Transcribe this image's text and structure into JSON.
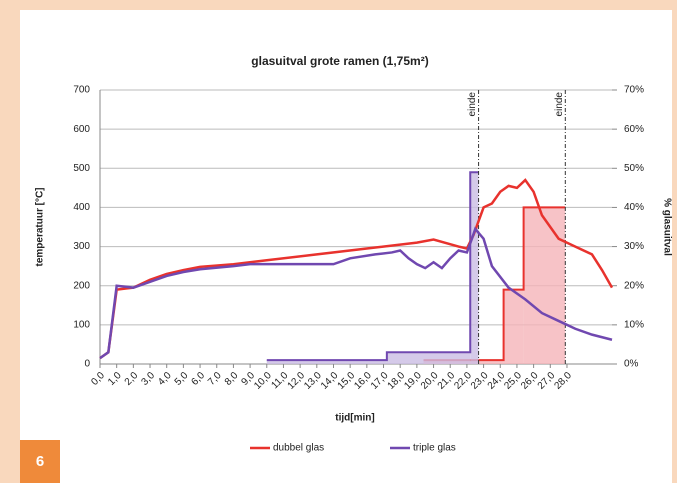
{
  "chart_data": {
    "type": "line",
    "title": "glasuitval grote ramen (1,75m²)",
    "x_label": "tijd[min]",
    "y_label": "temperatuur [°C]",
    "y2_label": "% glasuitval",
    "xlim": [
      0,
      30.7
    ],
    "xticks": [
      {
        "value": 0,
        "label": "0,0"
      },
      {
        "value": 1,
        "label": "1,0"
      },
      {
        "value": 2,
        "label": "2,0"
      },
      {
        "value": 3,
        "label": "3,0"
      },
      {
        "value": 4,
        "label": "4,0"
      },
      {
        "value": 5,
        "label": "5,0"
      },
      {
        "value": 6,
        "label": "6,0"
      },
      {
        "value": 7,
        "label": "7,0"
      },
      {
        "value": 8,
        "label": "8,0"
      },
      {
        "value": 9,
        "label": "9,0"
      },
      {
        "value": 10,
        "label": "10,0"
      },
      {
        "value": 11,
        "label": "11,0"
      },
      {
        "value": 12,
        "label": "12,0"
      },
      {
        "value": 13,
        "label": "13,0"
      },
      {
        "value": 14,
        "label": "14,0"
      },
      {
        "value": 15,
        "label": "15,0"
      },
      {
        "value": 16,
        "label": "16,0"
      },
      {
        "value": 17,
        "label": "17,0"
      },
      {
        "value": 18,
        "label": "18,0"
      },
      {
        "value": 19,
        "label": "19,0"
      },
      {
        "value": 20,
        "label": "20,0"
      },
      {
        "value": 21,
        "label": "21,0"
      },
      {
        "value": 22,
        "label": "22,0"
      },
      {
        "value": 23,
        "label": "23,0"
      },
      {
        "value": 24,
        "label": "24,0"
      },
      {
        "value": 25,
        "label": "25,0"
      },
      {
        "value": 26,
        "label": "26,0"
      },
      {
        "value": 27,
        "label": "27,0"
      },
      {
        "value": 28,
        "label": "28,0"
      }
    ],
    "ylim": [
      0,
      700
    ],
    "yticks": [
      0,
      100,
      200,
      300,
      400,
      500,
      600,
      700
    ],
    "y2lim": [
      0,
      70
    ],
    "y2ticks": [
      {
        "value": 0,
        "label": "0%"
      },
      {
        "value": 10,
        "label": "10%"
      },
      {
        "value": 20,
        "label": "20%"
      },
      {
        "value": 30,
        "label": "30%"
      },
      {
        "value": 40,
        "label": "40%"
      },
      {
        "value": 50,
        "label": "50%"
      },
      {
        "value": 60,
        "label": "60%"
      },
      {
        "value": 70,
        "label": "70%"
      }
    ],
    "grid": true,
    "annotations": [
      {
        "label": "einde",
        "x": 22.7
      },
      {
        "label": "einde",
        "x": 27.9
      }
    ],
    "series": [
      {
        "name": "dubbel glas",
        "color": "#e8322d",
        "fill": "#f5b4b9",
        "x": [
          0,
          0.5,
          1,
          2,
          3,
          4,
          5,
          6,
          8,
          10,
          13,
          16,
          19,
          20,
          21.5,
          22,
          22.4,
          23,
          23.5,
          24,
          24.5,
          25,
          25.5,
          26,
          26.5,
          27.5,
          28.5,
          29.5,
          30.1,
          30.7
        ],
        "values": [
          15,
          30,
          190,
          195,
          215,
          230,
          240,
          248,
          255,
          265,
          280,
          295,
          310,
          318,
          300,
          295,
          330,
          400,
          410,
          440,
          455,
          450,
          470,
          440,
          380,
          320,
          300,
          280,
          240,
          195
        ],
        "uitval": [
          {
            "from": 19.4,
            "to": 24.2,
            "value": 1
          },
          {
            "from": 24.2,
            "to": 25.4,
            "value": 19
          },
          {
            "from": 25.4,
            "to": 27.9,
            "value": 40
          }
        ]
      },
      {
        "name": "triple glas",
        "color": "#7048b0",
        "fill": "#cbbde3",
        "x": [
          0,
          0.5,
          1,
          2,
          3,
          4,
          5,
          6,
          8,
          9,
          14,
          15,
          16.5,
          17.5,
          18,
          18.5,
          19,
          19.5,
          20,
          20.5,
          21,
          21.5,
          22,
          22.3,
          22.5,
          23,
          23.5,
          24.5,
          25.5,
          26.5,
          27.5,
          28.5,
          29.5,
          30.7
        ],
        "values": [
          15,
          30,
          200,
          195,
          210,
          225,
          235,
          242,
          250,
          255,
          255,
          270,
          280,
          285,
          290,
          270,
          255,
          245,
          260,
          245,
          270,
          290,
          285,
          320,
          345,
          320,
          250,
          195,
          165,
          130,
          110,
          90,
          75,
          62
        ],
        "uitval": [
          {
            "from": 10,
            "to": 17.2,
            "value": 1
          },
          {
            "from": 17.2,
            "to": 22.2,
            "value": 3
          },
          {
            "from": 22.2,
            "to": 22.7,
            "value": 49
          }
        ]
      }
    ]
  },
  "page_number": "6"
}
